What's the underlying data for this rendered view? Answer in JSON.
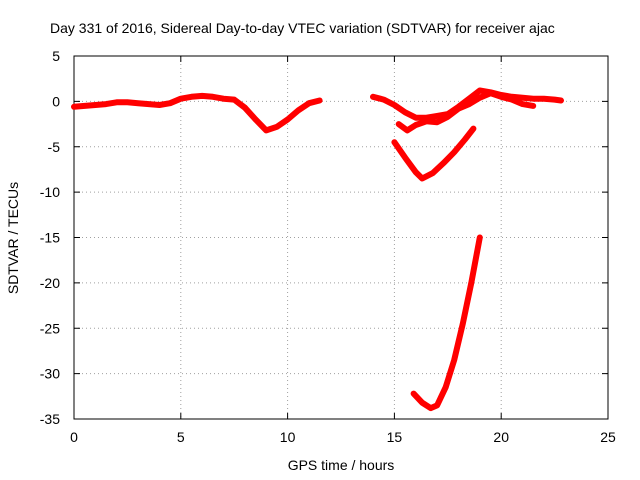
{
  "chart_data": {
    "type": "line",
    "title": "Day 331 of 2016, Sidereal Day-to-day VTEC variation (SDTVAR) for receiver ajac",
    "xlabel": "GPS time / hours",
    "ylabel": "SDTVAR / TECUs",
    "xlim": [
      0,
      25
    ],
    "ylim": [
      -35,
      5
    ],
    "xticks": [
      0,
      5,
      10,
      15,
      20,
      25
    ],
    "yticks": [
      5,
      0,
      -5,
      -10,
      -15,
      -20,
      -25,
      -30,
      -35
    ],
    "grid": true,
    "color": "#ff0000",
    "series": [
      {
        "name": "arc-1",
        "x": [
          0,
          0.5,
          1,
          1.5,
          2,
          2.5,
          3,
          3.5,
          4,
          4.5,
          5,
          5.5,
          6,
          6.5,
          7,
          7.5,
          8,
          8.5,
          9,
          9.5,
          10,
          10.5,
          11,
          11.5
        ],
        "y": [
          -0.6,
          -0.5,
          -0.4,
          -0.3,
          -0.1,
          -0.1,
          -0.2,
          -0.3,
          -0.4,
          -0.2,
          0.3,
          0.5,
          0.6,
          0.5,
          0.3,
          0.2,
          -0.7,
          -2.0,
          -3.2,
          -2.8,
          -2.0,
          -1.0,
          -0.2,
          0.1
        ]
      },
      {
        "name": "arc-2",
        "x": [
          14,
          14.5,
          15,
          15.5,
          16,
          16.5,
          17,
          17.5,
          18,
          18.5,
          19,
          19.5,
          20,
          20.5,
          21,
          21.5,
          22,
          22.5,
          22.8
        ],
        "y": [
          0.5,
          0.2,
          -0.4,
          -1.2,
          -1.8,
          -1.8,
          -1.6,
          -1.4,
          -0.6,
          0.3,
          1.2,
          1.0,
          0.7,
          0.5,
          0.4,
          0.3,
          0.3,
          0.2,
          0.1
        ]
      },
      {
        "name": "arc-3",
        "x": [
          15.2,
          15.6,
          16,
          16.5,
          17,
          17.5,
          18,
          18.5,
          19,
          19.5,
          20,
          20.5,
          21,
          21.5
        ],
        "y": [
          -2.5,
          -3.2,
          -2.6,
          -2.2,
          -2.3,
          -1.7,
          -0.8,
          -0.3,
          0.4,
          0.9,
          0.5,
          0.2,
          -0.3,
          -0.5
        ]
      },
      {
        "name": "arc-4",
        "x": [
          15.0,
          15.5,
          16.0,
          16.3,
          16.8,
          17.3,
          17.8,
          18.3,
          18.7
        ],
        "y": [
          -4.5,
          -6.2,
          -7.8,
          -8.5,
          -7.9,
          -6.8,
          -5.6,
          -4.2,
          -3.0
        ]
      },
      {
        "name": "arc-5",
        "x": [
          15.9,
          16.3,
          16.7,
          17.0,
          17.4,
          17.8,
          18.2,
          18.6,
          19.0
        ],
        "y": [
          -32.2,
          -33.2,
          -33.8,
          -33.5,
          -31.5,
          -28.5,
          -24.5,
          -20.0,
          -15.0
        ]
      }
    ]
  }
}
